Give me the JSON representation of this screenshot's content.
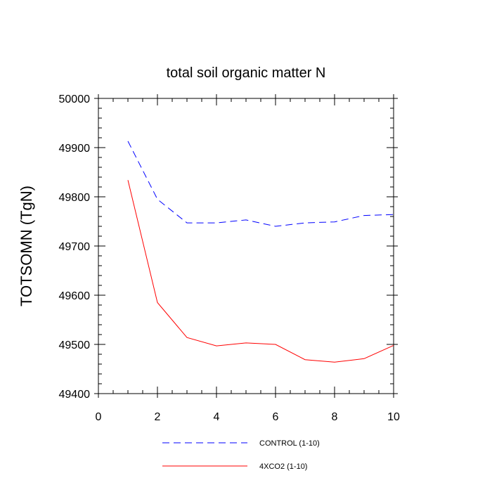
{
  "chart_data": {
    "type": "line",
    "title": "total soil organic matter N",
    "xlabel": "",
    "ylabel": "TOTSOMN  (TgN)",
    "xlim": [
      0,
      10
    ],
    "ylim": [
      49400,
      50000
    ],
    "x_ticks": [
      0,
      2,
      4,
      6,
      8,
      10
    ],
    "x_tick_labels": [
      "0",
      "2",
      "4",
      "6",
      "8",
      "10"
    ],
    "y_ticks": [
      49400,
      49500,
      49600,
      49700,
      49800,
      49900,
      50000
    ],
    "y_tick_labels": [
      "49400",
      "49500",
      "49600",
      "49700",
      "49800",
      "49900",
      "50000"
    ],
    "x": [
      1,
      2,
      3,
      4,
      5,
      6,
      7,
      8,
      9,
      10
    ],
    "grid": false,
    "legend_position": "bottom",
    "series": [
      {
        "name": "CONTROL (1-10)",
        "color": "#0000ff",
        "style": "dashed",
        "values": [
          49913,
          49795,
          49747,
          49747,
          49753,
          49740,
          49747,
          49749,
          49762,
          49764
        ]
      },
      {
        "name": "4XCO2 (1-10)",
        "color": "#ff0000",
        "style": "solid",
        "values": [
          49834,
          49585,
          49514,
          49497,
          49503,
          49500,
          49469,
          49464,
          49471,
          49498
        ]
      }
    ]
  }
}
